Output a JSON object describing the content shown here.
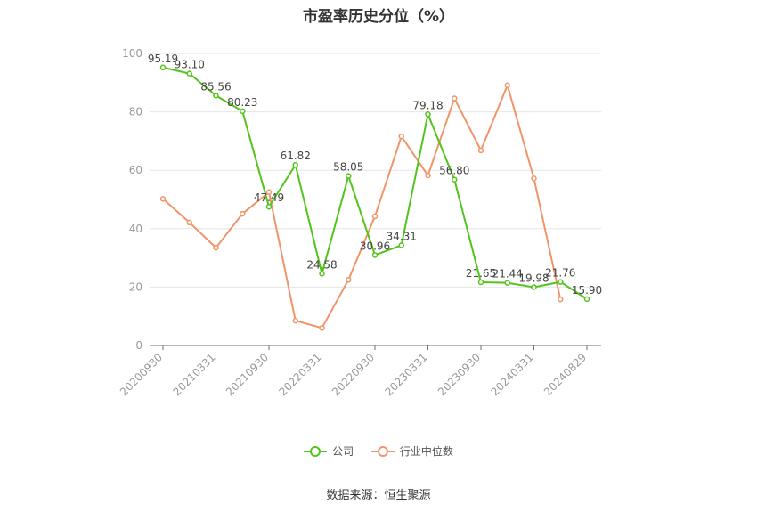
{
  "chart_data": {
    "type": "line",
    "title": "市盈率历史分位（%）",
    "xlabel": "",
    "ylabel": "",
    "ylim": [
      0,
      100
    ],
    "yticks": [
      0,
      20,
      40,
      60,
      80,
      100
    ],
    "x_tick_labels": [
      "20200930",
      "20210331",
      "20210930",
      "20220331",
      "20220930",
      "20230331",
      "20230930",
      "20240331",
      "20240829"
    ],
    "grid": "horizontal",
    "legend_position": "bottom",
    "series": [
      {
        "name": "公司",
        "color": "#52c41a",
        "values": [
          95.19,
          93.1,
          85.56,
          80.23,
          47.49,
          61.82,
          24.58,
          58.05,
          30.96,
          34.31,
          79.18,
          56.8,
          21.65,
          21.44,
          19.98,
          21.76,
          15.9
        ],
        "labels": [
          "95.19",
          "93.10",
          "85.56",
          "80.23",
          "47.49",
          "61.82",
          "24.58",
          "58.05",
          "30.96",
          "34.31",
          "79.18",
          "56.80",
          "21.65",
          "21.44",
          "19.98",
          "21.76",
          "15.90"
        ]
      },
      {
        "name": "行业中位数",
        "color": "#f0956a",
        "values": [
          50.2,
          42.1,
          33.5,
          45.1,
          52.5,
          8.5,
          6.0,
          22.5,
          44.2,
          71.6,
          58.2,
          84.6,
          66.8,
          89.1,
          57.2,
          15.8,
          null
        ]
      }
    ]
  },
  "footer": {
    "source": "数据来源：恒生聚源"
  }
}
